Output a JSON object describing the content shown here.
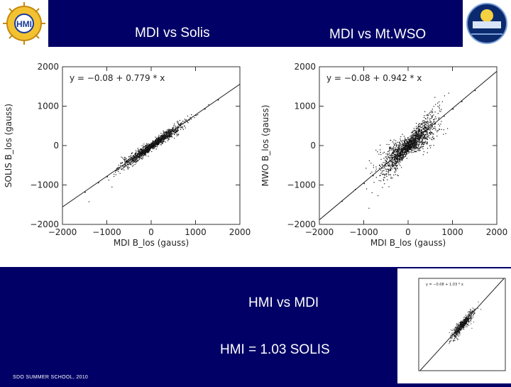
{
  "header": {
    "title_left": "MDI vs Solis",
    "title_right": "MDI vs Mt.WSO",
    "logo_left_icon": "hmi-sun-logo-icon",
    "logo_right_icon": "solar-dynamics-observatory-logo-icon"
  },
  "bottom": {
    "line1": "HMI vs MDI",
    "line2": "HMI = 1.03 SOLIS",
    "footer": "SDO SUMMER SCHOOL, 2010"
  },
  "chart_data": [
    {
      "type": "scatter",
      "title": "",
      "xlabel": "MDI B_los (gauss)",
      "ylabel": "SOLIS B_los (gauss)",
      "fit_label": "y = −0.08 + 0.779 * x",
      "fit": {
        "intercept": -0.08,
        "slope": 0.779
      },
      "xlim": [
        -2000,
        2000
      ],
      "ylim": [
        -2000,
        2000
      ],
      "xticks": [
        "−2000",
        "−1000",
        "0",
        "1000",
        "2000"
      ],
      "yticks": [
        "2000",
        "1000",
        "0",
        "−1000",
        "−2000"
      ],
      "xtick_values": [
        -2000,
        -1000,
        0,
        1000,
        2000
      ],
      "ytick_values": [
        2000,
        1000,
        0,
        -1000,
        -2000
      ],
      "grid": false,
      "points": [
        [
          -1500,
          -1170
        ],
        [
          -1200,
          -930
        ],
        [
          -1000,
          -780
        ],
        [
          -800,
          -620
        ],
        [
          -600,
          -470
        ],
        [
          -400,
          -310
        ],
        [
          -200,
          -150
        ],
        [
          0,
          0
        ],
        [
          200,
          160
        ],
        [
          400,
          310
        ],
        [
          600,
          470
        ],
        [
          800,
          620
        ],
        [
          1000,
          780
        ],
        [
          1200,
          940
        ],
        [
          1500,
          1170
        ]
      ]
    },
    {
      "type": "scatter",
      "title": "",
      "xlabel": "MDI B_los (gauss)",
      "ylabel": "MWO B_los (gauss)",
      "fit_label": "y = −0.08 + 0.942 * x",
      "fit": {
        "intercept": -0.08,
        "slope": 0.942
      },
      "xlim": [
        -2000,
        2000
      ],
      "ylim": [
        -2000,
        2000
      ],
      "xticks": [
        "−2000",
        "−1000",
        "0",
        "1000",
        "2000"
      ],
      "yticks": [
        "2000",
        "1000",
        "0",
        "−1000",
        "−2000"
      ],
      "xtick_values": [
        -2000,
        -1000,
        0,
        1000,
        2000
      ],
      "ytick_values": [
        2000,
        1000,
        0,
        -1000,
        -2000
      ],
      "grid": false,
      "points": [
        [
          -1500,
          -1400
        ],
        [
          -1200,
          -1100
        ],
        [
          -1000,
          -950
        ],
        [
          -800,
          -750
        ],
        [
          -600,
          -560
        ],
        [
          -400,
          -380
        ],
        [
          -200,
          -190
        ],
        [
          0,
          0
        ],
        [
          200,
          190
        ],
        [
          400,
          380
        ],
        [
          600,
          570
        ],
        [
          800,
          760
        ],
        [
          1000,
          940
        ],
        [
          1200,
          1130
        ],
        [
          1500,
          1410
        ]
      ]
    },
    {
      "type": "scatter",
      "title": "",
      "xlabel": "",
      "ylabel": "",
      "fit_label": "y = −0.08 + 1.03 * x",
      "fit": {
        "intercept": -0.08,
        "slope": 1.03
      },
      "xlim": [
        -2000,
        2000
      ],
      "ylim": [
        -2000,
        2000
      ],
      "grid": false
    }
  ]
}
